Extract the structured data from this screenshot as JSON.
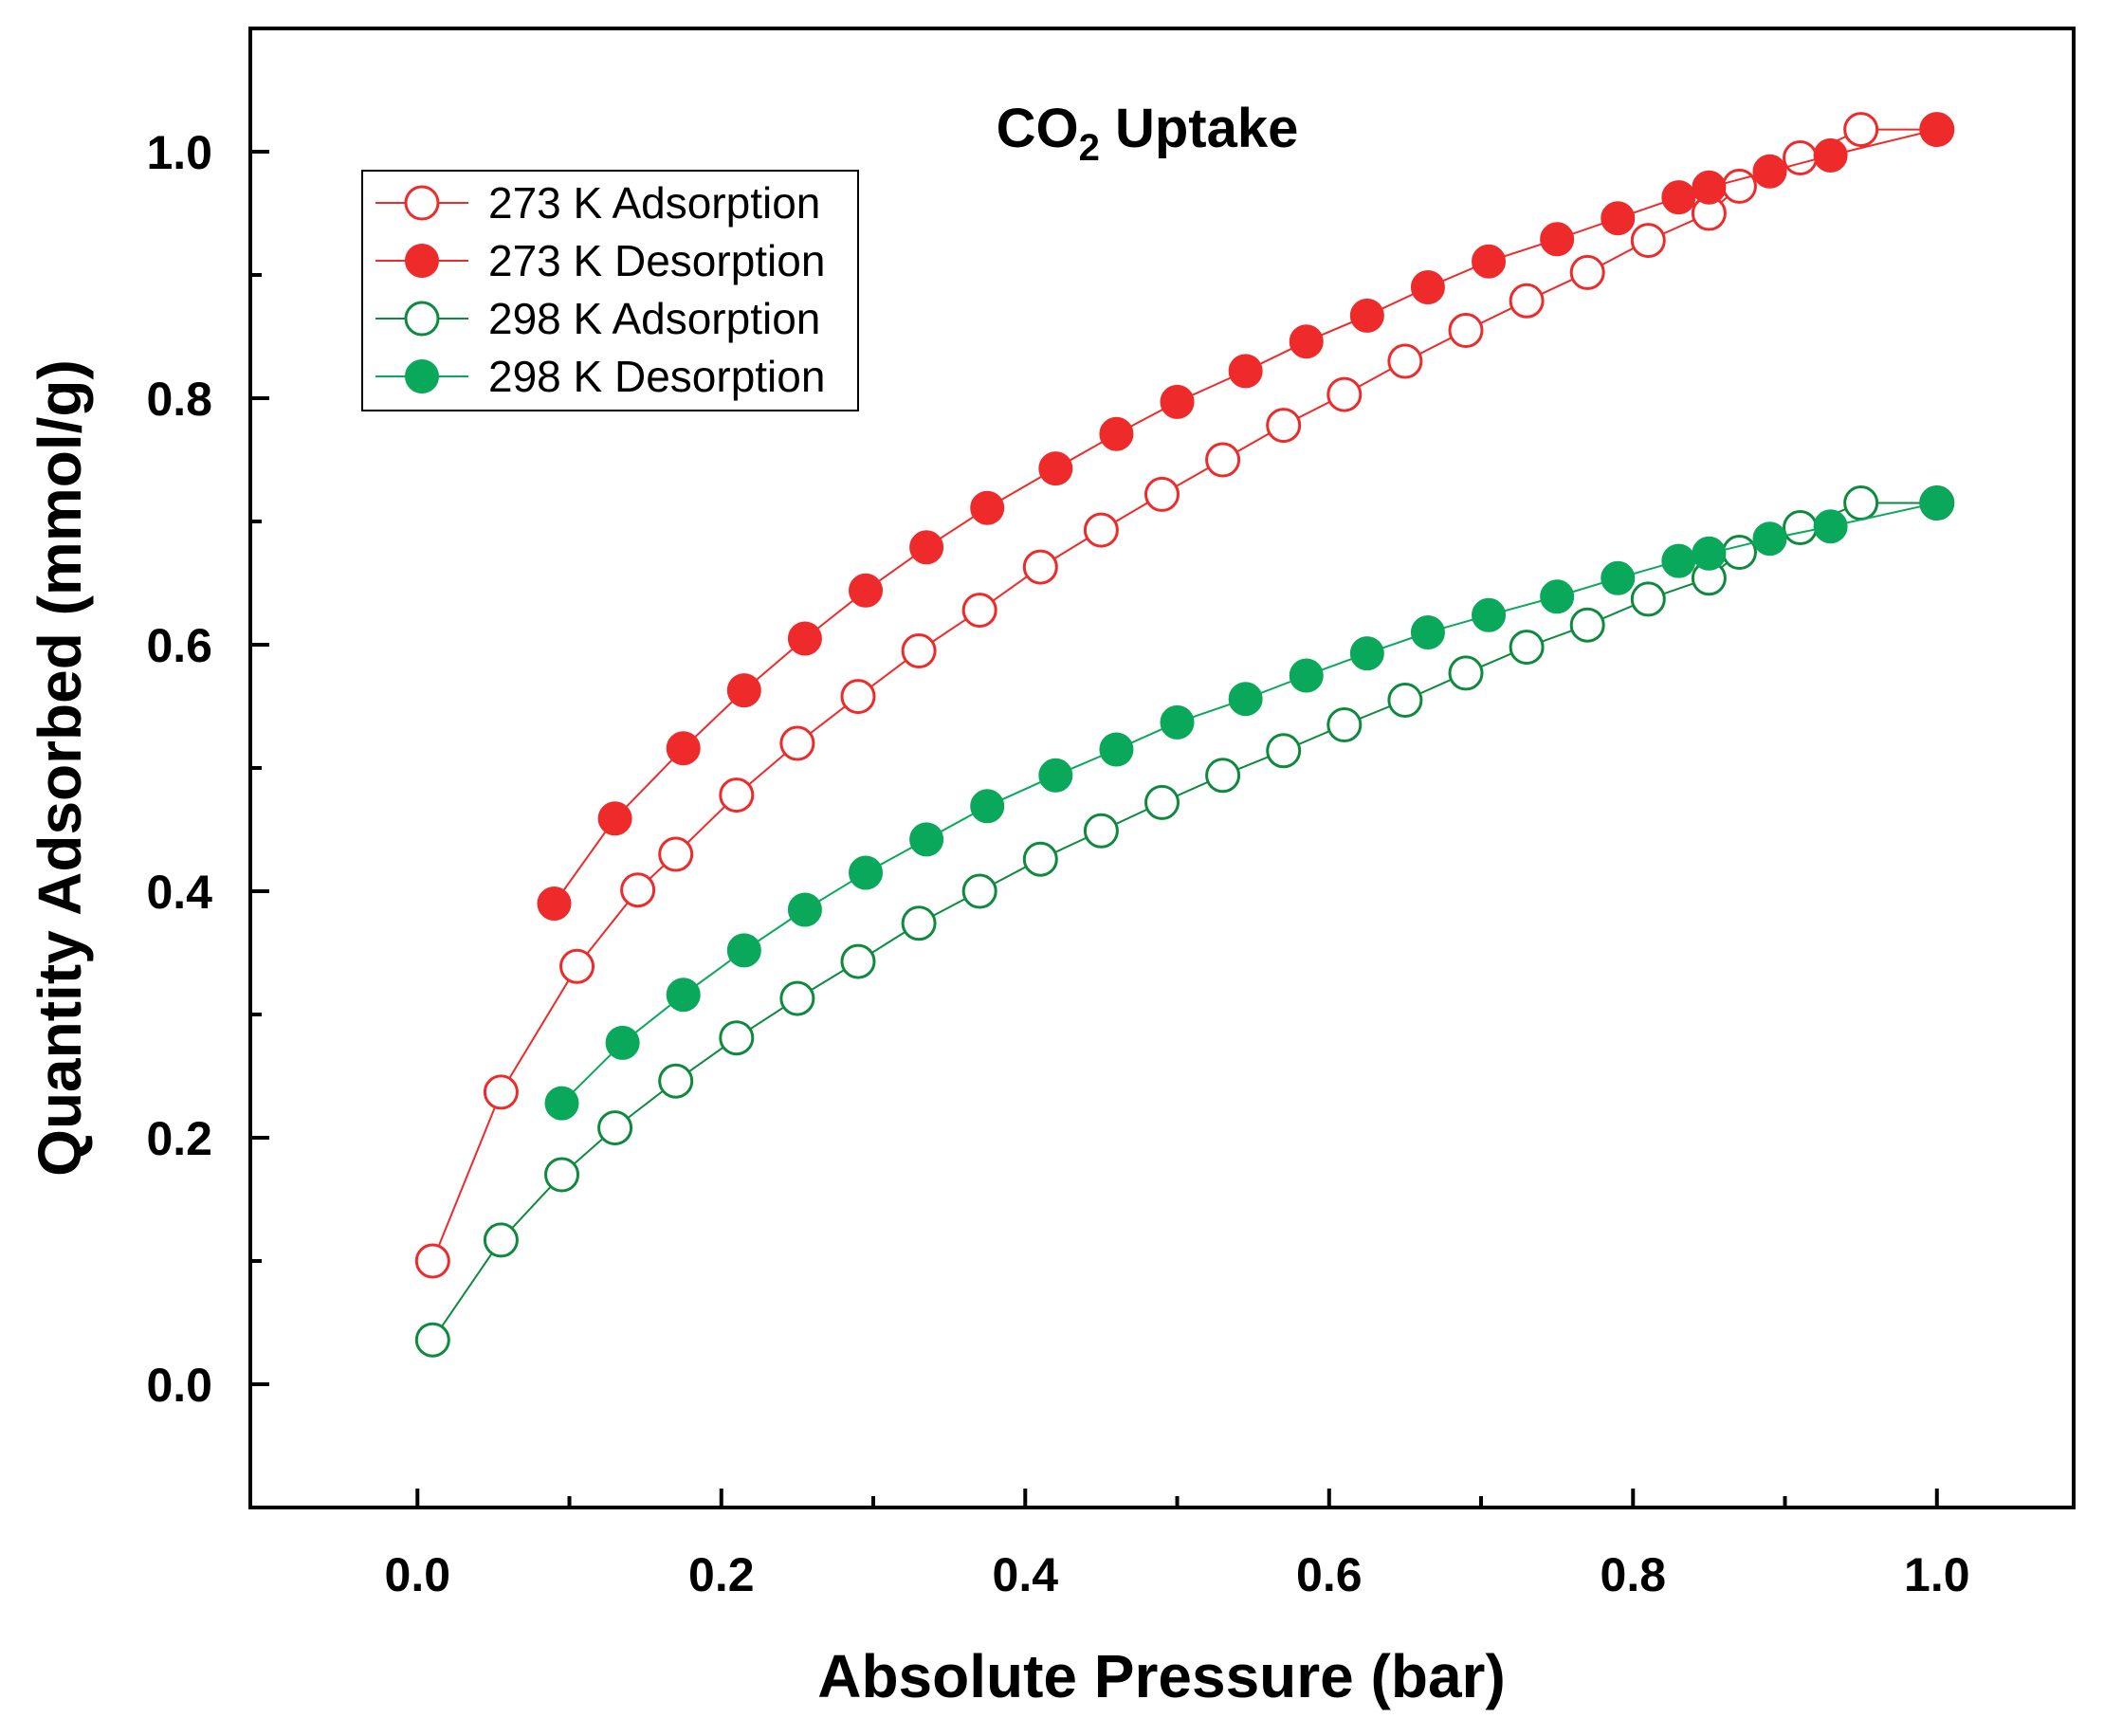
{
  "chart_data": {
    "type": "scatter",
    "title": "CO",
    "title_subscript": "2",
    "title_suffix": " Uptake",
    "xlabel": "Absolute Pressure (bar)",
    "ylabel": "Quantity Adsorbed (mmol/g)",
    "xlim": [
      -0.11,
      1.09
    ],
    "ylim": [
      -0.1,
      1.1
    ],
    "xticks": [
      "0.0",
      "0.2",
      "0.4",
      "0.6",
      "0.8",
      "1.0"
    ],
    "yticks": [
      "0.0",
      "0.2",
      "0.4",
      "0.6",
      "0.8",
      "1.0"
    ],
    "legend_position": "top-left",
    "series": [
      {
        "name": "273 K Adsorption",
        "color": "#ee2a2a",
        "marker": "open-circle",
        "x": [
          0.01,
          0.055,
          0.105,
          0.145,
          0.17,
          0.21,
          0.25,
          0.29,
          0.33,
          0.37,
          0.41,
          0.45,
          0.49,
          0.53,
          0.57,
          0.61,
          0.65,
          0.69,
          0.73,
          0.77,
          0.81,
          0.85,
          0.87,
          0.91,
          0.95,
          1.0
        ],
        "y": [
          0.1,
          0.237,
          0.339,
          0.401,
          0.43,
          0.478,
          0.52,
          0.558,
          0.595,
          0.628,
          0.663,
          0.693,
          0.722,
          0.75,
          0.778,
          0.803,
          0.83,
          0.855,
          0.879,
          0.902,
          0.928,
          0.95,
          0.972,
          0.995,
          1.018,
          1.018
        ]
      },
      {
        "name": "273 K Desorption",
        "color": "#ee2a2a",
        "marker": "filled-circle",
        "x": [
          0.09,
          0.13,
          0.175,
          0.215,
          0.255,
          0.295,
          0.335,
          0.375,
          0.42,
          0.46,
          0.5,
          0.545,
          0.585,
          0.625,
          0.665,
          0.705,
          0.75,
          0.79,
          0.83,
          0.85,
          0.89,
          0.93,
          1.0
        ],
        "y": [
          0.39,
          0.459,
          0.516,
          0.563,
          0.605,
          0.644,
          0.679,
          0.711,
          0.743,
          0.771,
          0.797,
          0.822,
          0.846,
          0.867,
          0.89,
          0.911,
          0.929,
          0.946,
          0.963,
          0.971,
          0.984,
          0.997,
          1.018
        ]
      },
      {
        "name": "298 K Adsorption",
        "color": "#0e8a3e",
        "marker": "open-circle",
        "x": [
          0.01,
          0.055,
          0.095,
          0.13,
          0.17,
          0.21,
          0.25,
          0.29,
          0.33,
          0.37,
          0.41,
          0.45,
          0.49,
          0.53,
          0.57,
          0.61,
          0.65,
          0.69,
          0.73,
          0.77,
          0.81,
          0.85,
          0.87,
          0.91,
          0.95,
          1.0
        ],
        "y": [
          0.036,
          0.117,
          0.17,
          0.208,
          0.246,
          0.281,
          0.313,
          0.343,
          0.374,
          0.4,
          0.426,
          0.449,
          0.472,
          0.494,
          0.514,
          0.535,
          0.555,
          0.577,
          0.598,
          0.616,
          0.637,
          0.654,
          0.675,
          0.695,
          0.715,
          0.715
        ]
      },
      {
        "name": "298 K Desorption",
        "color": "#0aa85a",
        "marker": "filled-circle",
        "x": [
          0.095,
          0.135,
          0.175,
          0.215,
          0.255,
          0.295,
          0.335,
          0.375,
          0.42,
          0.46,
          0.5,
          0.545,
          0.585,
          0.625,
          0.665,
          0.705,
          0.75,
          0.79,
          0.83,
          0.85,
          0.89,
          0.93,
          1.0
        ],
        "y": [
          0.228,
          0.277,
          0.316,
          0.352,
          0.385,
          0.415,
          0.442,
          0.469,
          0.494,
          0.515,
          0.537,
          0.556,
          0.575,
          0.593,
          0.61,
          0.624,
          0.639,
          0.654,
          0.668,
          0.674,
          0.686,
          0.696,
          0.715
        ]
      }
    ]
  }
}
